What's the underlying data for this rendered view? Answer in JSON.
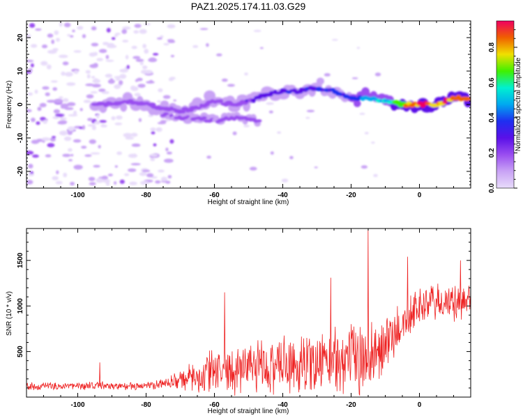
{
  "title": "PAZ1.2025.174.11.03.G29",
  "colors": {
    "snr_line": "#ee2222",
    "spectrogram_cmap": [
      "#e8dcfa",
      "#c9a3f5",
      "#9a4ef0",
      "#5a10e8",
      "#1f2ff0",
      "#00a8f0",
      "#00f0d0",
      "#40f000",
      "#f0e000",
      "#f06000",
      "#f00060"
    ]
  },
  "chart_data": [
    {
      "type": "heatmap",
      "xlabel": "Height of straight line (km)",
      "ylabel": "Frequency (Hz)",
      "xlim": [
        -115,
        15
      ],
      "ylim": [
        -25,
        25
      ],
      "x_ticks": [
        -100,
        -80,
        -60,
        -40,
        -20,
        0
      ],
      "y_ticks": [
        -20,
        -10,
        0,
        10,
        20
      ],
      "colorbar": {
        "label": "Normalized spectral amplitude",
        "range": [
          0,
          0.95
        ],
        "ticks": [
          0.0,
          0.2,
          0.4,
          0.6,
          0.8
        ]
      },
      "ridge": {
        "x": [
          -95,
          -90,
          -85,
          -80,
          -75,
          -70,
          -65,
          -60,
          -55,
          -50,
          -45,
          -40,
          -35,
          -30,
          -25,
          -20,
          -15,
          -10,
          -5,
          0,
          5,
          10,
          15
        ],
        "y": [
          0,
          0,
          1,
          0,
          -1,
          -2,
          -1,
          1,
          0,
          1,
          3,
          4,
          4,
          5,
          4,
          2,
          2,
          1,
          0,
          0,
          0,
          2,
          2
        ],
        "amplitude": [
          0.18,
          0.2,
          0.2,
          0.18,
          0.2,
          0.22,
          0.22,
          0.25,
          0.22,
          0.25,
          0.3,
          0.33,
          0.33,
          0.36,
          0.36,
          0.4,
          0.5,
          0.6,
          0.78,
          0.92,
          0.88,
          0.92,
          0.9
        ]
      },
      "secondary_branch": {
        "x": [
          -75,
          -70,
          -65,
          -60,
          -55,
          -50,
          -47
        ],
        "y": [
          -3,
          -4,
          -4,
          -5,
          -4,
          -4,
          -5
        ],
        "amplitude": [
          0.15,
          0.17,
          0.18,
          0.17,
          0.18,
          0.22,
          0.18
        ]
      },
      "noise_region_x": [
        -115,
        -72
      ]
    },
    {
      "type": "line",
      "xlabel": "Height of straight line (km)",
      "ylabel": "SNR (10 * v/v)",
      "xlim": [
        -115,
        15
      ],
      "ylim": [
        0,
        1850
      ],
      "x_ticks": [
        -100,
        -80,
        -60,
        -40,
        -20,
        0
      ],
      "y_ticks": [
        500,
        1000,
        1500
      ],
      "x": [
        -115,
        -110,
        -105,
        -100,
        -95,
        -90,
        -85,
        -80,
        -75,
        -70,
        -65,
        -60,
        -55,
        -50,
        -45,
        -40,
        -35,
        -30,
        -25,
        -20,
        -15,
        -10,
        -5,
        0,
        5,
        10,
        15
      ],
      "y_mean": [
        120,
        120,
        120,
        120,
        130,
        120,
        120,
        120,
        150,
        190,
        220,
        280,
        300,
        310,
        330,
        340,
        370,
        380,
        400,
        420,
        440,
        560,
        800,
        1000,
        1050,
        1000,
        1100
      ],
      "y_spread": [
        40,
        40,
        40,
        40,
        45,
        40,
        40,
        40,
        60,
        100,
        180,
        260,
        280,
        280,
        290,
        300,
        320,
        330,
        360,
        380,
        390,
        320,
        250,
        200,
        200,
        200,
        200
      ],
      "spikes": [
        {
          "x": -93.5,
          "y": 380
        },
        {
          "x": -57,
          "y": 1150
        },
        {
          "x": -26,
          "y": 1310
        },
        {
          "x": -15,
          "y": 1840
        },
        {
          "x": -3.5,
          "y": 1540
        },
        {
          "x": 12,
          "y": 1500
        }
      ]
    }
  ]
}
